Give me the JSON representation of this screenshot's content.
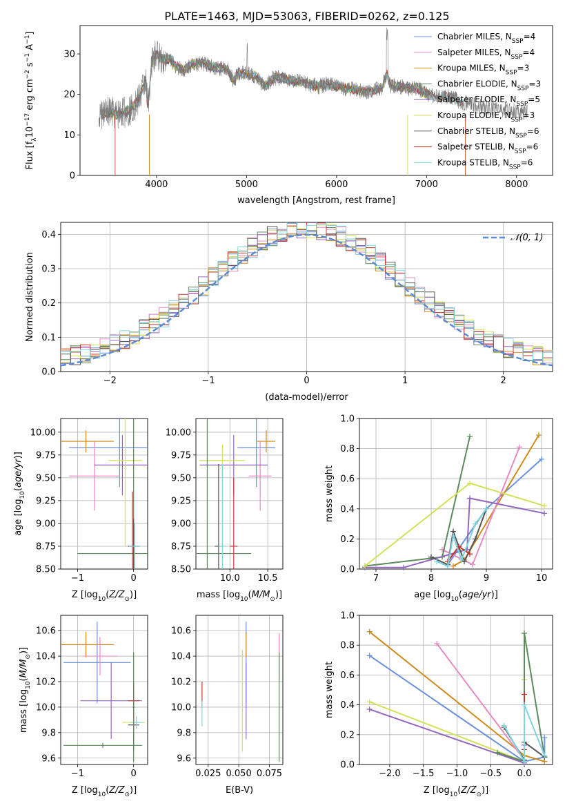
{
  "figure_title": "PLATE=1463, MJD=53063, FIBERID=0262, z=0.125",
  "chart_data": [
    {
      "id": "spectrum",
      "type": "line",
      "title": "PLATE=1463, MJD=53063, FIBERID=0262, z=0.125",
      "xlabel": "wavelength [Angstrom, rest frame]",
      "ylabel": "Flux [f_λ 10⁻¹⁷ erg cm⁻² s⁻¹ A⁻¹]",
      "xlim": [
        3150,
        8400
      ],
      "ylim": [
        0,
        37
      ],
      "xticks": [
        4000,
        5000,
        6000,
        7000,
        8000
      ],
      "yticks": [
        0,
        10,
        20,
        30
      ],
      "grid": false,
      "legend_position": "top-right",
      "data_spectrum": {
        "x": [
          3360,
          3400,
          3500,
          3550,
          3600,
          3700,
          3800,
          3880,
          3900,
          3950,
          4000,
          4050,
          4100,
          4150,
          4200,
          4300,
          4400,
          4500,
          4600,
          4700,
          4800,
          4860,
          4900,
          5000,
          5100,
          5200,
          5300,
          5400,
          5500,
          5600,
          5700,
          5800,
          5900,
          6000,
          6100,
          6200,
          6300,
          6400,
          6500,
          6563,
          6600,
          6700,
          6800,
          6900,
          7000,
          7100,
          7200,
          7300,
          7400,
          7500,
          7600,
          7700,
          7800,
          7900,
          8000,
          8100
        ],
        "y": [
          15.0,
          15.2,
          15.6,
          14.8,
          15.5,
          16.0,
          18.5,
          24.0,
          17.0,
          28.0,
          30.0,
          29.0,
          28.5,
          29.0,
          27.0,
          26.0,
          27.5,
          27.8,
          27.0,
          26.5,
          26.0,
          23.0,
          25.5,
          25.0,
          24.5,
          22.0,
          24.0,
          24.0,
          23.5,
          23.0,
          22.5,
          22.0,
          22.5,
          22.0,
          21.5,
          21.5,
          20.5,
          21.0,
          21.5,
          25.0,
          22.0,
          22.0,
          21.5,
          21.5,
          20.0,
          19.5,
          19.5,
          19.0,
          18.0,
          17.5,
          17.0,
          16.5,
          16.5,
          16.0,
          16.0,
          15.5
        ]
      },
      "series": [
        {
          "name": "Chabrier MILES, N_SSP=4",
          "color": "#6a8fdc"
        },
        {
          "name": "Salpeter MILES, N_SSP=4",
          "color": "#e78ac3"
        },
        {
          "name": "Kroupa MILES, N_SSP=3",
          "color": "#d08b1a"
        },
        {
          "name": "Chabrier ELODIE, N_SSP=3",
          "color": "#5b8a5b"
        },
        {
          "name": "Salpeter ELODIE, N_SSP=5",
          "color": "#9467bd"
        },
        {
          "name": "Kroupa ELODIE, N_SSP=3",
          "color": "#d4e157"
        },
        {
          "name": "Chabrier STELIB, N_SSP=6",
          "color": "#555555"
        },
        {
          "name": "Salpeter STELIB, N_SSP=6",
          "color": "#c0392b"
        },
        {
          "name": "Kroupa STELIB, N_SSP=6",
          "color": "#7fd3dc"
        }
      ],
      "legend_labels": [
        {
          "pre": "Chabrier MILES, N",
          "sub": "SSP",
          "post": "=4"
        },
        {
          "pre": "Salpeter MILES, N",
          "sub": "SSP",
          "post": "=4"
        },
        {
          "pre": "Kroupa MILES, N",
          "sub": "SSP",
          "post": "=3"
        },
        {
          "pre": "Chabrier ELODIE, N",
          "sub": "SSP",
          "post": "=3"
        },
        {
          "pre": "Salpeter ELODIE, N",
          "sub": "SSP",
          "post": "=5"
        },
        {
          "pre": "Kroupa ELODIE, N",
          "sub": "SSP",
          "post": "=3"
        },
        {
          "pre": "Chabrier STELIB, N",
          "sub": "SSP",
          "post": "=6"
        },
        {
          "pre": "Salpeter STELIB, N",
          "sub": "SSP",
          "post": "=6"
        },
        {
          "pre": "Kroupa STELIB, N",
          "sub": "SSP",
          "post": "=6"
        }
      ]
    },
    {
      "id": "residuals",
      "type": "line",
      "xlabel": "(data-model)/error",
      "ylabel": "Normed distribution",
      "xlim": [
        -2.5,
        2.5
      ],
      "ylim": [
        0,
        0.435
      ],
      "xticks": [
        -2,
        -1,
        0,
        1,
        2
      ],
      "yticks": [
        0.0,
        0.1,
        0.2,
        0.3,
        0.4
      ],
      "grid": true,
      "legend_position": "top-right",
      "gaussian_label": "𝒩(0, 1)",
      "gaussian_color": "#5b8bd6",
      "bin_width": 0.1
    },
    {
      "id": "age_vs_Z",
      "type": "scatter",
      "xlabel": "Z [log₁₀(Z/Z☉)]",
      "ylabel": "age  [log₁₀(age/yr)]",
      "xlim": [
        -1.3,
        0.25
      ],
      "ylim": [
        8.5,
        10.15
      ],
      "xticks": [
        -1,
        0
      ],
      "yticks": [
        8.5,
        8.75,
        9.0,
        9.25,
        9.5,
        9.75,
        10.0
      ],
      "grid": true,
      "points": [
        {
          "color": "#6a8fdc",
          "x": -0.25,
          "xerr": 0.9,
          "y": 9.83,
          "yerr": 0.43
        },
        {
          "color": "#d08b1a",
          "x": -0.85,
          "xerr": 0.5,
          "y": 9.9,
          "yerr": 0.12
        },
        {
          "color": "#e78ac3",
          "x": -0.7,
          "xerr": 0.45,
          "y": 9.52,
          "yerr": 0.38
        },
        {
          "color": "#9467bd",
          "x": -0.2,
          "xerr": 0.5,
          "y": 9.64,
          "yerr": 0.33
        },
        {
          "color": "#d4e157",
          "x": -0.15,
          "xerr": 0.3,
          "y": 9.69,
          "yerr": 0.95
        },
        {
          "color": "#5b8a5b",
          "x": 0.0,
          "xerr": 1.0,
          "y": 8.67,
          "yerr": 1.5
        },
        {
          "color": "#555555",
          "x": 0.0,
          "xerr": 0.1,
          "y": 8.75,
          "yerr": 0.3
        },
        {
          "color": "#c0392b",
          "x": -0.02,
          "xerr": 0.05,
          "y": 8.75,
          "yerr": 0.6
        },
        {
          "color": "#7fd3dc",
          "x": 0.02,
          "xerr": 0.1,
          "y": 8.75,
          "yerr": 0.25
        }
      ]
    },
    {
      "id": "age_vs_mass",
      "type": "scatter",
      "xlabel": "mass [log₁₀(M/M☉)]",
      "ylabel": "",
      "xlim": [
        9.55,
        10.7
      ],
      "ylim": [
        8.5,
        10.15
      ],
      "xticks": [
        10.0,
        10.5
      ],
      "xtick_labels": [
        "10.0",
        "10.5"
      ],
      "yticks": [
        8.5,
        8.75,
        9.0,
        9.25,
        9.5,
        9.75,
        10.0
      ],
      "grid": true,
      "points": [
        {
          "color": "#6a8fdc",
          "x": 10.35,
          "xerr": 0.25,
          "y": 9.83,
          "yerr": 0.43
        },
        {
          "color": "#d08b1a",
          "x": 10.48,
          "xerr": 0.12,
          "y": 9.9,
          "yerr": 0.12
        },
        {
          "color": "#e78ac3",
          "x": 10.4,
          "xerr": 0.15,
          "y": 9.52,
          "yerr": 0.38
        },
        {
          "color": "#9467bd",
          "x": 10.05,
          "xerr": 0.45,
          "y": 9.64,
          "yerr": 0.33
        },
        {
          "color": "#d4e157",
          "x": 9.9,
          "xerr": 0.3,
          "y": 9.69,
          "yerr": 0.17
        },
        {
          "color": "#5b8a5b",
          "x": 9.7,
          "xerr": 0.58,
          "y": 8.67,
          "yerr": 1.5
        },
        {
          "color": "#555555",
          "x": 9.85,
          "xerr": 0.05,
          "y": 8.75,
          "yerr": 0.9
        },
        {
          "color": "#c0392b",
          "x": 10.05,
          "xerr": 0.05,
          "y": 8.75,
          "yerr": 0.75
        },
        {
          "color": "#7fd3dc",
          "x": 9.9,
          "xerr": 0.05,
          "y": 8.75,
          "yerr": 0.9
        }
      ]
    },
    {
      "id": "mass_weight_vs_age",
      "type": "line",
      "xlabel": "age  [log₁₀(age/yr)]",
      "ylabel": "mass weight",
      "xlim": [
        6.7,
        10.2
      ],
      "ylim": [
        0,
        1.0
      ],
      "xticks": [
        7,
        8,
        9,
        10
      ],
      "yticks": [
        0.0,
        0.2,
        0.4,
        0.6,
        0.8,
        1.0
      ],
      "grid": true,
      "series": [
        {
          "color": "#6a8fdc",
          "x": [
            8.3,
            9.0,
            10.0
          ],
          "y": [
            0.03,
            0.4,
            0.73
          ]
        },
        {
          "color": "#d08b1a",
          "x": [
            8.4,
            8.6,
            9.95
          ],
          "y": [
            0.02,
            0.06,
            0.89
          ]
        },
        {
          "color": "#e78ac3",
          "x": [
            8.2,
            8.75,
            9.6
          ],
          "y": [
            0.13,
            0.03,
            0.81
          ]
        },
        {
          "color": "#5b8a5b",
          "x": [
            6.8,
            8.2,
            8.7
          ],
          "y": [
            0.02,
            0.08,
            0.88
          ]
        },
        {
          "color": "#9467bd",
          "x": [
            6.8,
            7.5,
            8.65,
            8.7,
            10.05
          ],
          "y": [
            0.01,
            0.01,
            0.13,
            0.47,
            0.37
          ]
        },
        {
          "color": "#d4e157",
          "x": [
            6.8,
            8.7,
            10.05
          ],
          "y": [
            0.02,
            0.57,
            0.42
          ]
        },
        {
          "color": "#555555",
          "x": [
            8.0,
            8.3,
            8.4,
            8.6,
            8.8,
            9.0
          ],
          "y": [
            0.08,
            0.03,
            0.25,
            0.05,
            0.2,
            0.4
          ]
        },
        {
          "color": "#c0392b",
          "x": [
            8.3,
            8.5,
            8.7
          ],
          "y": [
            0.05,
            0.15,
            0.1
          ]
        },
        {
          "color": "#7fd3dc",
          "x": [
            8.1,
            8.3,
            8.4,
            8.55,
            8.8,
            9.0
          ],
          "y": [
            0.05,
            0.02,
            0.22,
            0.06,
            0.3,
            0.4
          ]
        }
      ]
    },
    {
      "id": "mass_vs_Z",
      "type": "scatter",
      "xlabel": "Z [log₁₀(Z/Z☉)]",
      "ylabel": "mass [log₁₀(M/M☉)]",
      "xlim": [
        -1.3,
        0.25
      ],
      "ylim": [
        9.55,
        10.72
      ],
      "xticks": [
        -1,
        0
      ],
      "yticks": [
        9.6,
        9.8,
        10.0,
        10.2,
        10.4,
        10.6
      ],
      "grid": true,
      "points": [
        {
          "color": "#6a8fdc",
          "x": -0.65,
          "xerr": 0.6,
          "y": 10.35,
          "yerr": 0.32
        },
        {
          "color": "#d08b1a",
          "x": -0.85,
          "xerr": 0.5,
          "y": 10.49,
          "yerr": 0.1
        },
        {
          "color": "#e78ac3",
          "x": -0.6,
          "xerr": 0.3,
          "y": 10.4,
          "yerr": 0.15
        },
        {
          "color": "#9467bd",
          "x": -0.4,
          "xerr": 0.55,
          "y": 10.05,
          "yerr": 0.3
        },
        {
          "color": "#d4e157",
          "x": 0.0,
          "xerr": 0.2,
          "y": 9.88,
          "yerr": 0.22
        },
        {
          "color": "#5b8a5b",
          "x": -0.55,
          "xerr": 0.7,
          "y": 9.7,
          "yerr": 0.02
        },
        {
          "color": "#555555",
          "x": 0.0,
          "xerr": 0.1,
          "y": 9.86,
          "yerr": 0.2
        },
        {
          "color": "#c0392b",
          "x": 0.0,
          "xerr": 0.1,
          "y": 10.05,
          "yerr": 0.15
        },
        {
          "color": "#7fd3dc",
          "x": 0.05,
          "xerr": 0.1,
          "y": 9.88,
          "yerr": 0.05
        },
        {
          "color": "#5b8a5b",
          "x": 0.0,
          "xerr": 0.02,
          "y": 10.0,
          "yerr": 0.43
        }
      ]
    },
    {
      "id": "mass_vs_ebv",
      "type": "scatter",
      "xlabel": "E(B-V)",
      "ylabel": "",
      "xlim": [
        0.015,
        0.086
      ],
      "ylim": [
        9.55,
        10.72
      ],
      "xticks": [
        0.025,
        0.05,
        0.075
      ],
      "xtick_labels": [
        "0.025",
        "0.050",
        "0.075"
      ],
      "yticks": [
        9.6,
        9.8,
        10.0,
        10.2,
        10.4,
        10.6
      ],
      "grid": true,
      "points": [
        {
          "color": "#c0392b",
          "x": 0.02,
          "y": 10.1,
          "yerr": 0.1
        },
        {
          "color": "#7fd3dc",
          "x": 0.02,
          "y": 9.95,
          "yerr": 0.1
        },
        {
          "color": "#d4e157",
          "x": 0.053,
          "y": 10.05,
          "yerr": 0.4
        },
        {
          "color": "#6a8fdc",
          "x": 0.056,
          "y": 10.35,
          "yerr": 0.32
        },
        {
          "color": "#d08b1a",
          "x": 0.056,
          "y": 10.49,
          "yerr": 0.1
        },
        {
          "color": "#9467bd",
          "x": 0.056,
          "y": 10.05,
          "yerr": 0.3
        },
        {
          "color": "#e78ac3",
          "x": 0.083,
          "y": 10.4,
          "yerr": 0.18
        },
        {
          "color": "#5b8a5b",
          "x": 0.083,
          "y": 10.0,
          "yerr": 0.43
        }
      ]
    },
    {
      "id": "mass_weight_vs_Z",
      "type": "line",
      "xlabel": "Z [log₁₀(Z/Z☉)]",
      "ylabel": "mass weight",
      "xlim": [
        -2.45,
        0.42
      ],
      "ylim": [
        0,
        1.0
      ],
      "xticks": [
        -2.0,
        -1.5,
        -1.0,
        -0.5,
        0.0
      ],
      "xtick_labels": [
        "−2.0",
        "−1.5",
        "−1.0",
        "−0.5",
        "0.0"
      ],
      "yticks": [
        0.0,
        0.2,
        0.4,
        0.6,
        0.8,
        1.0
      ],
      "grid": true,
      "series": [
        {
          "color": "#6a8fdc",
          "x": [
            -2.3,
            0.0,
            0.3,
            0.3
          ],
          "y": [
            0.73,
            0.02,
            0.05,
            0.18
          ]
        },
        {
          "color": "#d08b1a",
          "x": [
            -2.3,
            0.0,
            0.3
          ],
          "y": [
            0.89,
            0.06,
            0.02
          ]
        },
        {
          "color": "#e78ac3",
          "x": [
            -1.3,
            0.0
          ],
          "y": [
            0.81,
            0.03
          ]
        },
        {
          "color": "#9467bd",
          "x": [
            -2.3,
            0.0,
            0.0
          ],
          "y": [
            0.37,
            0.01,
            0.13
          ]
        },
        {
          "color": "#d4e157",
          "x": [
            -2.3,
            0.0,
            0.0
          ],
          "y": [
            0.42,
            0.02,
            0.57
          ]
        },
        {
          "color": "#5b8a5b",
          "x": [
            -0.4,
            0.0,
            0.0,
            0.3
          ],
          "y": [
            0.08,
            0.02,
            0.88,
            0.05
          ]
        },
        {
          "color": "#555555",
          "x": [
            -0.3,
            0.0,
            0.0,
            0.3
          ],
          "y": [
            0.25,
            0.03,
            0.15,
            0.05
          ]
        },
        {
          "color": "#c0392b",
          "x": [
            0.0,
            0.0
          ],
          "y": [
            0.1,
            0.47
          ]
        },
        {
          "color": "#7fd3dc",
          "x": [
            -0.3,
            0.0,
            0.0,
            0.3
          ],
          "y": [
            0.26,
            0.02,
            0.4,
            0.06
          ]
        }
      ]
    }
  ]
}
